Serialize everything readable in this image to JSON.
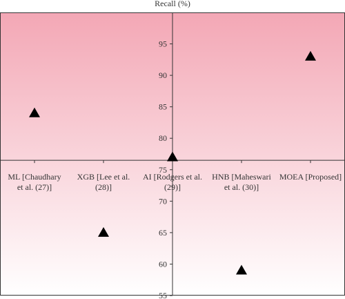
{
  "chart_data": {
    "type": "scatter",
    "title": "Recall (%)",
    "xlabel": "",
    "ylabel": "",
    "categories": [
      [
        "ML [Chaudhary",
        "et al. (27)]"
      ],
      [
        "XGB [Lee et al.",
        "(28)]"
      ],
      [
        "AI [Rodgers et al.",
        "(29)]"
      ],
      [
        "HNB [Maheswari",
        "et al. (30)]"
      ],
      [
        "MOEA [Proposed]"
      ]
    ],
    "series": [
      {
        "values": [
          84,
          65,
          77,
          59,
          93
        ]
      }
    ],
    "ylim": [
      55,
      100
    ],
    "yticks": [
      55,
      60,
      65,
      70,
      75,
      80,
      85,
      90,
      95
    ],
    "x_axis_crosses_y": 76.5,
    "marker": "triangle",
    "marker_color": "#000000",
    "background_top_color": "#f3a7b5",
    "background_bottom_color": "#ffffff",
    "grid": false
  }
}
